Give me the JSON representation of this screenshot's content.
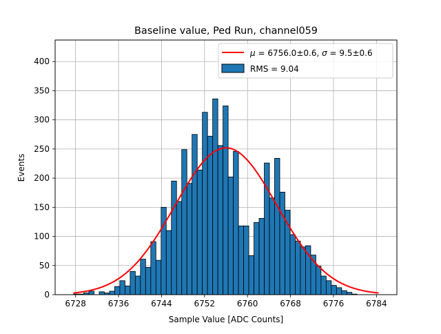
{
  "chart_data": {
    "type": "bar",
    "title": "Baseline value, Ped Run, channel059",
    "xlabel": "Sample Value [ADC Counts]",
    "ylabel": "Events",
    "xlim": [
      6724.2,
      6787.8
    ],
    "ylim": [
      0,
      437
    ],
    "xticks": [
      6728,
      6736,
      6744,
      6752,
      6760,
      6768,
      6776,
      6784
    ],
    "yticks": [
      0,
      50,
      100,
      150,
      200,
      250,
      300,
      350,
      400
    ],
    "grid": true,
    "legend_position": "top-right",
    "bin_start": 6727.6,
    "bin_width": 0.96,
    "histogram": {
      "name": "RMS = 9.04",
      "color": "#1f77b4",
      "counts": [
        1,
        1,
        3,
        6,
        0,
        5,
        3,
        6,
        14,
        24,
        15,
        40,
        32,
        61,
        47,
        91,
        59,
        150,
        110,
        195,
        160,
        249,
        191,
        275,
        214,
        313,
        272,
        336,
        256,
        324,
        202,
        246,
        118,
        118,
        67,
        124,
        131,
        226,
        166,
        234,
        176,
        145,
        103,
        92,
        82,
        84,
        68,
        49,
        32,
        24,
        16,
        12,
        7,
        4,
        1,
        0,
        0,
        0
      ]
    },
    "fit": {
      "name": "$\\mu = 6756.0{\\pm}0.6$, $\\sigma = 9.5{\\pm}0.6$",
      "name_display": {
        "mu": "μ",
        "eq1": " = 6756.0±0.6, ",
        "sigma": "σ",
        "eq2": " = 9.5±0.6"
      },
      "color": "#ff0000",
      "mu": 6756.0,
      "sigma": 9.5,
      "amplitude": 252,
      "x_range": [
        6727.6,
        6784.4
      ]
    }
  }
}
